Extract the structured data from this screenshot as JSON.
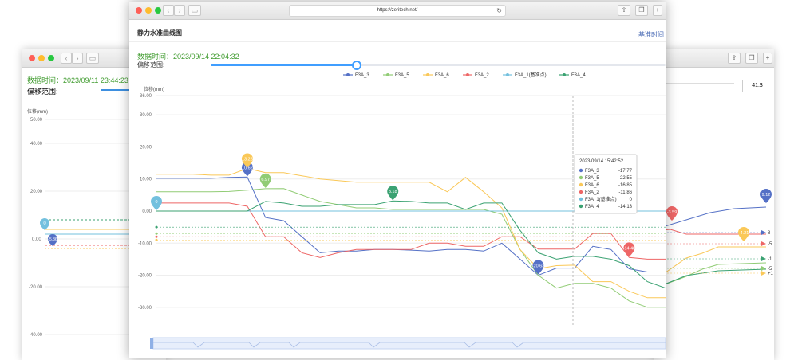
{
  "left_window": {
    "data_time_label": "数据时间：2023/09/11 23:44:23",
    "offset_label": "偏移范围:",
    "y_unit": "位移(mm)",
    "y_ticks": [
      "50.00",
      "40.00",
      "20.00",
      "0.00",
      "-20.00",
      "-40.00"
    ],
    "markers": [
      "0",
      "-5.36"
    ]
  },
  "right_window": {
    "value_box": "41.3"
  },
  "main_window": {
    "url": "https://zeritech.net/",
    "page_title": "静力水准曲线图",
    "baseline_link": "基准时间",
    "data_time_label": "数据时间：2023/09/14 22:04:32",
    "offset_label": "偏移范围:",
    "slider_fraction": 0.32
  },
  "chart_data": {
    "type": "line",
    "ylabel": "位移(mm)",
    "ylim": [
      -36,
      36
    ],
    "y_ticks": [
      "36.00",
      "30.00",
      "20.00",
      "10.00",
      "0.00",
      "-10.00",
      "-20.00",
      "-30.00"
    ],
    "series": [
      {
        "name": "F3A_3",
        "color": "#5470c6",
        "values": [
          10.2,
          10.2,
          10.2,
          10.2,
          10.5,
          10.6,
          -2,
          -3,
          -8,
          -13,
          -12.5,
          -12.5,
          -12,
          -12,
          -12.2,
          -12.5,
          -12,
          -12,
          -12.5,
          -10,
          -15,
          -20,
          -17.77,
          -17.77,
          -11,
          -12,
          -18,
          -19,
          -19
        ]
      },
      {
        "name": "F3A_5",
        "color": "#91cc75",
        "values": [
          6,
          6,
          6,
          6,
          6.1,
          6.5,
          6.97,
          7,
          5,
          3,
          2,
          1,
          1,
          0.5,
          0.5,
          0.5,
          0.5,
          0.5,
          0.5,
          -1,
          -12,
          -20,
          -24,
          -22.55,
          -22.55,
          -24,
          -28,
          -30,
          -30
        ]
      },
      {
        "name": "F3A_6",
        "color": "#fac858",
        "values": [
          11.5,
          11.5,
          11.5,
          11.2,
          11.2,
          13.28,
          12,
          12,
          11,
          10,
          9.5,
          9,
          9,
          9,
          9,
          9,
          6,
          10.5,
          6,
          1,
          -12,
          -18,
          -17,
          -16.85,
          -22,
          -22,
          -25,
          -27,
          -27
        ]
      },
      {
        "name": "F3A_2",
        "color": "#ee6666",
        "values": [
          2.5,
          2.5,
          2.5,
          2.5,
          2.5,
          1.5,
          -8,
          -8,
          -13,
          -14.5,
          -13,
          -12,
          -12,
          -12,
          -12,
          -10,
          -10,
          -11,
          -11,
          -8,
          -8,
          -11.86,
          -11.86,
          -11.86,
          -7,
          -7,
          -14.48,
          -15,
          -15
        ]
      },
      {
        "name": "F3A_1(基准点)",
        "color": "#73c0de",
        "values": [
          0,
          0,
          0,
          0,
          0,
          0,
          0,
          0,
          0,
          0,
          0,
          0,
          0,
          0,
          0,
          0,
          0,
          0,
          0,
          0,
          0,
          0,
          0,
          0,
          0,
          0,
          0,
          0,
          0
        ]
      },
      {
        "name": "F3A_4",
        "color": "#3ba272",
        "values": [
          0,
          0,
          0,
          0,
          0,
          0,
          3,
          2.5,
          1.5,
          1.5,
          2,
          2,
          2,
          3.18,
          3,
          2.5,
          2.5,
          0.5,
          2.5,
          2.5,
          -6,
          -13,
          -15,
          -14.13,
          -14.13,
          -15,
          -17,
          -22,
          -24
        ]
      }
    ],
    "markers": [
      {
        "series": "F3A_1(基准点)",
        "index": 0,
        "label": "0"
      },
      {
        "series": "F3A_3",
        "index": 5,
        "label": "10.62"
      },
      {
        "series": "F3A_5",
        "index": 6,
        "label": "6.97"
      },
      {
        "series": "F3A_6",
        "index": 5,
        "label": "13.28"
      },
      {
        "series": "F3A_4",
        "index": 13,
        "label": "3.18"
      },
      {
        "series": "F3A_3",
        "index": 21,
        "label": "-20.63"
      },
      {
        "series": "F3A_2",
        "index": 26,
        "label": "-14.48"
      }
    ],
    "tooltip": {
      "title": "2023/09/14 15:42:52",
      "rows": [
        {
          "name": "F3A_3",
          "value": "-17.77",
          "color": "#5470c6"
        },
        {
          "name": "F3A_5",
          "value": "-22.55",
          "color": "#91cc75"
        },
        {
          "name": "F3A_6",
          "value": "-16.85",
          "color": "#fac858"
        },
        {
          "name": "F3A_2",
          "value": "-11.86",
          "color": "#ee6666"
        },
        {
          "name": "F3A_1(基准点)",
          "value": "0",
          "color": "#73c0de"
        },
        {
          "name": "F3A_4",
          "value": "-14.13",
          "color": "#3ba272"
        }
      ]
    },
    "right_chart_markers": [
      "9.12",
      "-3.59",
      "-4.21",
      "8",
      "-5",
      "-1",
      "-5",
      "-1",
      "+1"
    ]
  }
}
